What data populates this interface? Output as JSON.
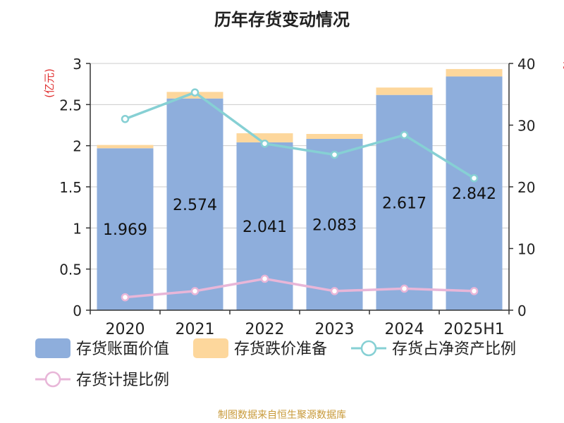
{
  "title": "历年存货变动情况",
  "source": "制图数据来自恒生聚源数据库",
  "colors": {
    "book_value": "#8eaedc",
    "reserve": "#fdd79c",
    "ratio_net_assets": "#86d0d4",
    "provision_ratio": "#e8b6d8",
    "axis_unit": "#e03030",
    "axis": "#333333",
    "grid": "#cccccc"
  },
  "legend": [
    {
      "label": "存货账面价值",
      "shape": "bar",
      "series": 0
    },
    {
      "label": "存货跌价准备",
      "shape": "bar",
      "series": 1
    },
    {
      "label": "存货占净资产比例",
      "shape": "line",
      "series": 2
    },
    {
      "label": "存货计提比例",
      "shape": "line",
      "series": 3
    }
  ],
  "chart_data": {
    "type": "bar",
    "title": "历年存货变动情况",
    "categories": [
      "2020",
      "2021",
      "2022",
      "2023",
      "2024",
      "2025H1"
    ],
    "y_left": {
      "unit_label": "(亿元)",
      "ylim": [
        0,
        3
      ],
      "ticks": [
        "0",
        "0.5",
        "1",
        "1.5",
        "2",
        "2.5",
        "3"
      ]
    },
    "y_right": {
      "unit_label": "%",
      "ylim": [
        0,
        40
      ],
      "ticks": [
        "0",
        "10",
        "20",
        "30",
        "40"
      ]
    },
    "grid": true,
    "legend_position": "bottom",
    "series": [
      {
        "name": "存货账面价值",
        "type": "bar",
        "axis": "left",
        "stack": "inv",
        "values": [
          1.969,
          2.574,
          2.041,
          2.083,
          2.617,
          2.842
        ],
        "labels": [
          "1.969",
          "2.574",
          "2.041",
          "2.083",
          "2.617",
          "2.842"
        ]
      },
      {
        "name": "存货跌价准备",
        "type": "bar",
        "axis": "left",
        "stack": "inv",
        "values": [
          0.04,
          0.08,
          0.11,
          0.06,
          0.09,
          0.09
        ]
      },
      {
        "name": "存货占净资产比例",
        "type": "line",
        "axis": "right",
        "values": [
          31.0,
          35.3,
          27.0,
          25.2,
          28.4,
          21.4
        ]
      },
      {
        "name": "存货计提比例",
        "type": "line",
        "axis": "right",
        "values": [
          2.1,
          3.1,
          5.1,
          3.1,
          3.5,
          3.1
        ]
      }
    ]
  }
}
